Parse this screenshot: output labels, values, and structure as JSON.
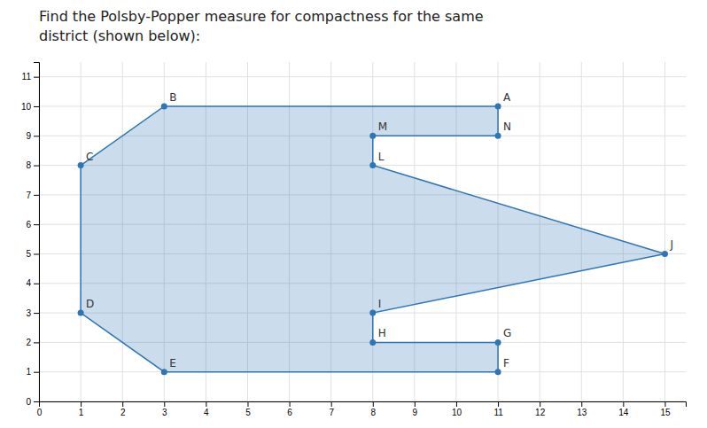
{
  "chart_data": {
    "type": "polygon",
    "title": "Find the Polsby-Popper measure for compactness for the same",
    "subtitle": "district (shown below):",
    "categories": [
      "A",
      "B",
      "C",
      "D",
      "E",
      "F",
      "G",
      "H",
      "I",
      "J",
      "L",
      "M",
      "N"
    ],
    "x": [
      11,
      3,
      1,
      1,
      3,
      11,
      11,
      8,
      8,
      15,
      8,
      8,
      11
    ],
    "values": [
      10,
      10,
      8,
      3,
      1,
      1,
      2,
      2,
      3,
      5,
      8,
      9,
      9
    ],
    "color": "#2e75b6",
    "xlim": [
      0,
      15.5
    ],
    "ylim": [
      0,
      11.5
    ],
    "xticks": [
      0,
      1,
      2,
      3,
      4,
      5,
      6,
      7,
      8,
      9,
      10,
      11,
      12,
      13,
      14,
      15
    ],
    "yticks": [
      0,
      1,
      2,
      3,
      4,
      5,
      6,
      7,
      8,
      9,
      10,
      11
    ],
    "grid": true
  }
}
